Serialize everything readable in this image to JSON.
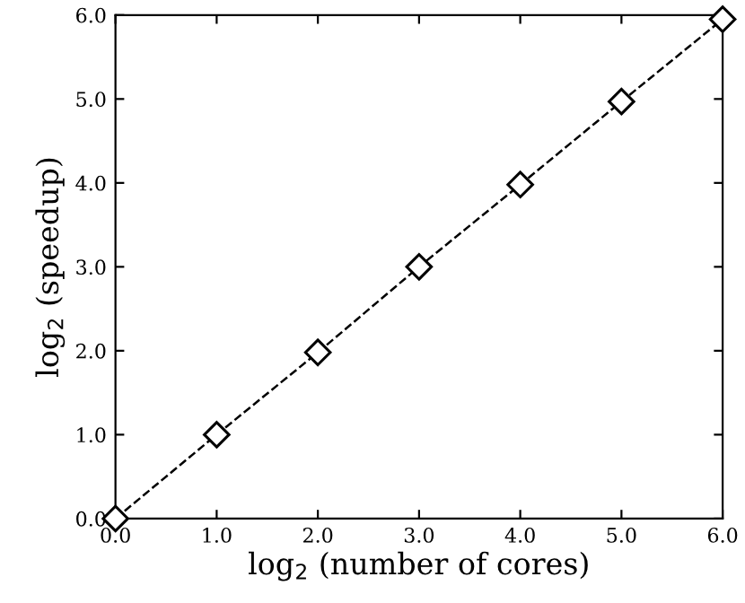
{
  "chart_data": {
    "type": "line",
    "xlabel": "log$_{2}$ (number of cores)",
    "ylabel": "log$_{2}$ (speedup)",
    "x": [
      0,
      1,
      2,
      3,
      4,
      5,
      6
    ],
    "series": [
      {
        "color": "#000000",
        "values": [
          0,
          1,
          1.98,
          3,
          3.98,
          4.97,
          5.95
        ]
      }
    ],
    "marker": "diamond",
    "line_style": "dashed",
    "grid": false,
    "legend": false,
    "xlim": [
      0,
      6
    ],
    "ylim": [
      0,
      6
    ],
    "xticks": [
      {
        "value": 0,
        "label": "0.0"
      },
      {
        "value": 1,
        "label": "1.0"
      },
      {
        "value": 2,
        "label": "2.0"
      },
      {
        "value": 3,
        "label": "3.0"
      },
      {
        "value": 4,
        "label": "4.0"
      },
      {
        "value": 5,
        "label": "5.0"
      },
      {
        "value": 6,
        "label": "6.0"
      }
    ],
    "yticks": [
      {
        "value": 0,
        "label": "0.0"
      },
      {
        "value": 1,
        "label": "1.0"
      },
      {
        "value": 2,
        "label": "2.0"
      },
      {
        "value": 3,
        "label": "3.0"
      },
      {
        "value": 4,
        "label": "4.0"
      },
      {
        "value": 5,
        "label": "5.0"
      },
      {
        "value": 6,
        "label": "6.0"
      }
    ]
  }
}
